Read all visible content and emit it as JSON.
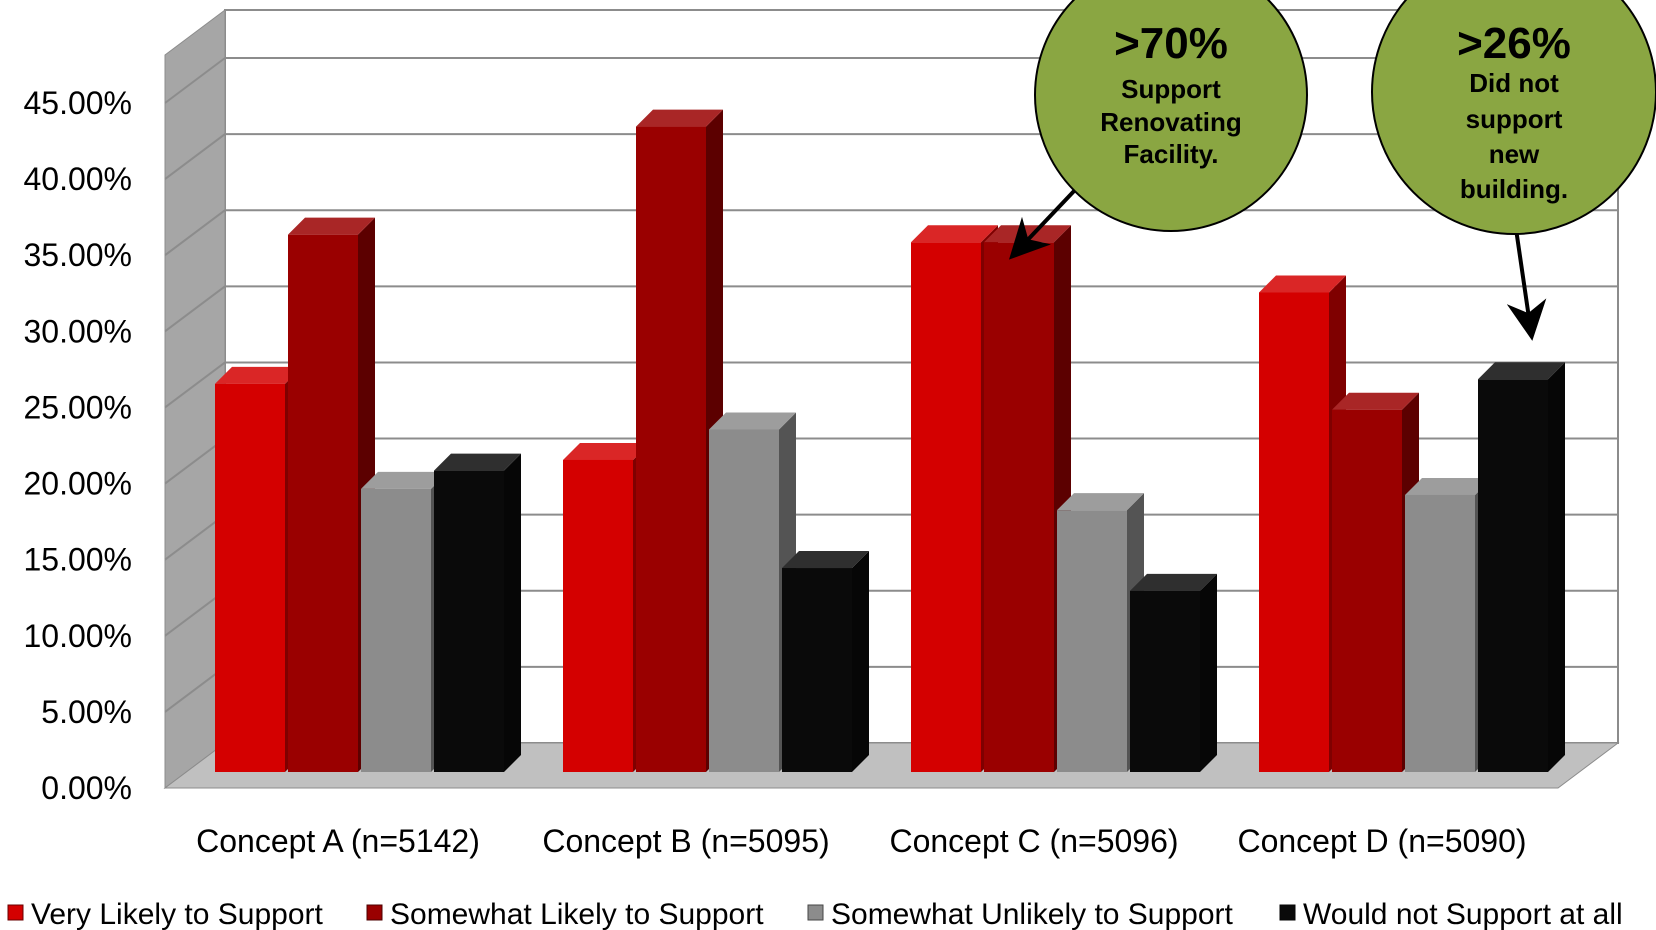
{
  "chart_data": {
    "type": "bar",
    "categories": [
      "Concept A (n=5142)",
      "Concept B (n=5095)",
      "Concept C (n=5096)",
      "Concept D (n=5090)"
    ],
    "series": [
      {
        "name": "Very Likely to Support",
        "color": "#d40000",
        "values": [
          25.5,
          20.5,
          34.8,
          31.5
        ]
      },
      {
        "name": "Somewhat Likely to Support",
        "color": "#9a0000",
        "values": [
          35.3,
          42.4,
          34.8,
          23.8
        ]
      },
      {
        "name": "Somewhat Unlikely to Support",
        "color": "#8c8c8c",
        "values": [
          18.6,
          22.5,
          17.2,
          18.2
        ]
      },
      {
        "name": "Would not Support at all",
        "color": "#0a0a0a",
        "values": [
          19.8,
          13.4,
          11.9,
          25.8
        ]
      }
    ],
    "y_ticks": [
      "0.00%",
      "5.00%",
      "10.00%",
      "15.00%",
      "20.00%",
      "25.00%",
      "30.00%",
      "35.00%",
      "40.00%",
      "45.00%"
    ],
    "ylim": [
      0,
      45
    ],
    "grid": true,
    "legend_position": "bottom",
    "title": "",
    "xlabel": "",
    "ylabel": "",
    "annotations": [
      {
        "headline": ">70%",
        "lines": [
          "Support",
          "Renovating",
          "Facility."
        ],
        "points_to": "Concept C",
        "color": "#8aa642"
      },
      {
        "headline": ">26%",
        "lines": [
          "Did not",
          "support",
          "new",
          "building."
        ],
        "points_to": "Concept D",
        "color": "#8aa642"
      }
    ]
  }
}
